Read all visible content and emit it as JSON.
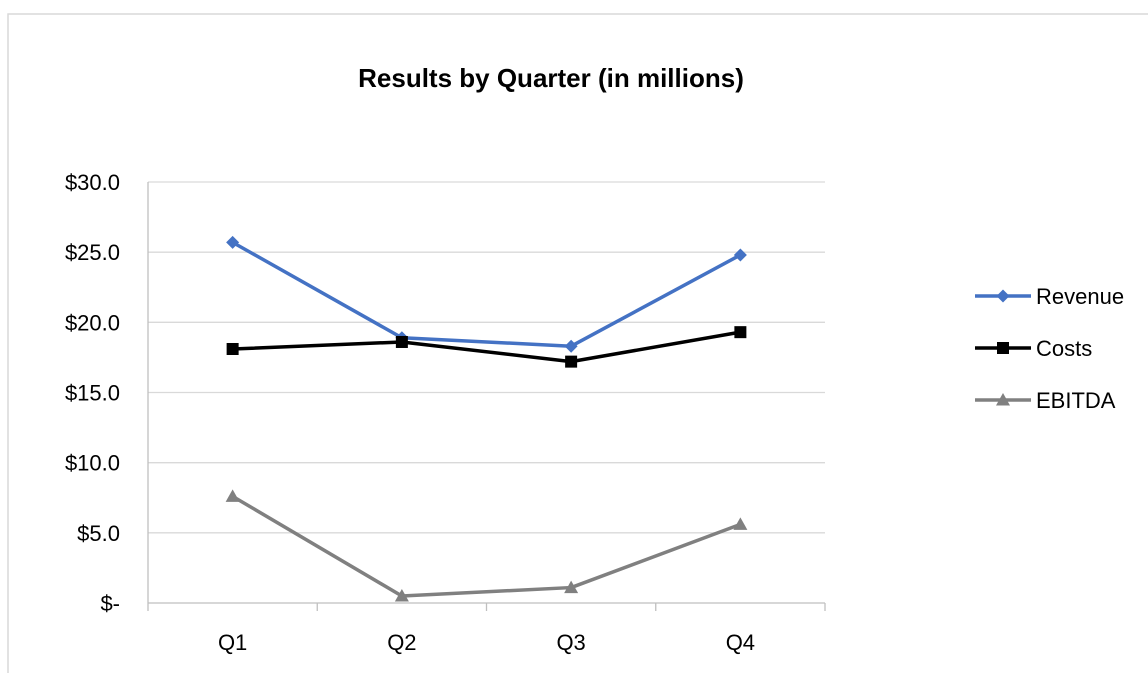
{
  "chart_data": {
    "type": "line",
    "title": "Results by Quarter (in millions)",
    "xlabel": "",
    "ylabel": "",
    "categories": [
      "Q1",
      "Q2",
      "Q3",
      "Q4"
    ],
    "ylim": [
      0,
      30
    ],
    "yticks": [
      0,
      5,
      10,
      15,
      20,
      25,
      30
    ],
    "ytick_labels": [
      "$-",
      "$5.0",
      "$10.0",
      "$15.0",
      "$20.0",
      "$25.0",
      "$30.0"
    ],
    "grid": true,
    "legend_position": "right",
    "series": [
      {
        "name": "Revenue",
        "values": [
          25.7,
          18.9,
          18.3,
          24.8
        ],
        "color": "#4472c4",
        "marker": "diamond"
      },
      {
        "name": "Costs",
        "values": [
          18.1,
          18.6,
          17.2,
          19.3
        ],
        "color": "#000000",
        "marker": "square"
      },
      {
        "name": "EBITDA",
        "values": [
          7.6,
          0.5,
          1.1,
          5.6
        ],
        "color": "#808080",
        "marker": "triangle"
      }
    ]
  }
}
